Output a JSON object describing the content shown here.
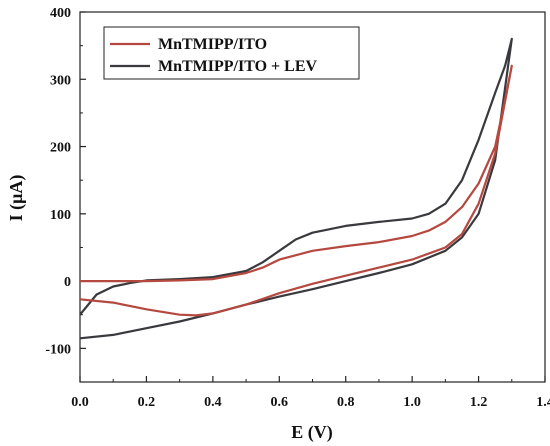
{
  "chart_data": {
    "type": "line",
    "xlabel": "E (V)",
    "ylabel": "I (μA)",
    "xlim": [
      0.0,
      1.4
    ],
    "ylim": [
      -150,
      400
    ],
    "xticks": [
      "0.0",
      "0.2",
      "0.4",
      "0.6",
      "0.8",
      "1.0",
      "1.2",
      "1.4"
    ],
    "yticks": [
      "-100",
      "0",
      "100",
      "200",
      "300",
      "400"
    ],
    "xtick_values": [
      0.0,
      0.2,
      0.4,
      0.6,
      0.8,
      1.0,
      1.2,
      1.4
    ],
    "ytick_values": [
      -100,
      0,
      100,
      200,
      300,
      400
    ],
    "legend_position": "top-left",
    "grid": false,
    "series": [
      {
        "name": "MnTMIPP/ITO",
        "color": "#b5483f",
        "points": [
          [
            0.0,
            -27
          ],
          [
            0.1,
            -32
          ],
          [
            0.2,
            -42
          ],
          [
            0.3,
            -50
          ],
          [
            0.35,
            -51
          ],
          [
            0.4,
            -48
          ],
          [
            0.5,
            -35
          ],
          [
            0.6,
            -18
          ],
          [
            0.7,
            -4
          ],
          [
            0.8,
            8
          ],
          [
            0.9,
            20
          ],
          [
            1.0,
            32
          ],
          [
            1.1,
            50
          ],
          [
            1.15,
            70
          ],
          [
            1.2,
            115
          ],
          [
            1.25,
            190
          ],
          [
            1.3,
            320
          ],
          [
            1.28,
            270
          ],
          [
            1.25,
            200
          ],
          [
            1.2,
            145
          ],
          [
            1.15,
            110
          ],
          [
            1.1,
            88
          ],
          [
            1.05,
            75
          ],
          [
            1.0,
            67
          ],
          [
            0.9,
            58
          ],
          [
            0.8,
            52
          ],
          [
            0.7,
            45
          ],
          [
            0.6,
            32
          ],
          [
            0.55,
            20
          ],
          [
            0.5,
            12
          ],
          [
            0.4,
            3
          ],
          [
            0.3,
            1
          ],
          [
            0.2,
            0
          ],
          [
            0.1,
            0
          ],
          [
            0.0,
            0
          ]
        ]
      },
      {
        "name": "MnTMIPP/ITO + LEV",
        "color": "#3a3a3e",
        "points": [
          [
            0.0,
            -85
          ],
          [
            0.1,
            -80
          ],
          [
            0.2,
            -70
          ],
          [
            0.3,
            -60
          ],
          [
            0.4,
            -48
          ],
          [
            0.5,
            -35
          ],
          [
            0.6,
            -23
          ],
          [
            0.7,
            -12
          ],
          [
            0.8,
            0
          ],
          [
            0.9,
            12
          ],
          [
            1.0,
            25
          ],
          [
            1.1,
            45
          ],
          [
            1.15,
            65
          ],
          [
            1.2,
            100
          ],
          [
            1.25,
            180
          ],
          [
            1.3,
            360
          ],
          [
            1.28,
            320
          ],
          [
            1.25,
            280
          ],
          [
            1.2,
            210
          ],
          [
            1.15,
            150
          ],
          [
            1.1,
            115
          ],
          [
            1.05,
            100
          ],
          [
            1.0,
            93
          ],
          [
            0.9,
            88
          ],
          [
            0.8,
            82
          ],
          [
            0.7,
            72
          ],
          [
            0.65,
            62
          ],
          [
            0.6,
            45
          ],
          [
            0.55,
            28
          ],
          [
            0.5,
            15
          ],
          [
            0.4,
            6
          ],
          [
            0.3,
            3
          ],
          [
            0.2,
            1
          ],
          [
            0.15,
            -3
          ],
          [
            0.1,
            -8
          ],
          [
            0.05,
            -20
          ],
          [
            0.0,
            -50
          ]
        ]
      }
    ]
  }
}
